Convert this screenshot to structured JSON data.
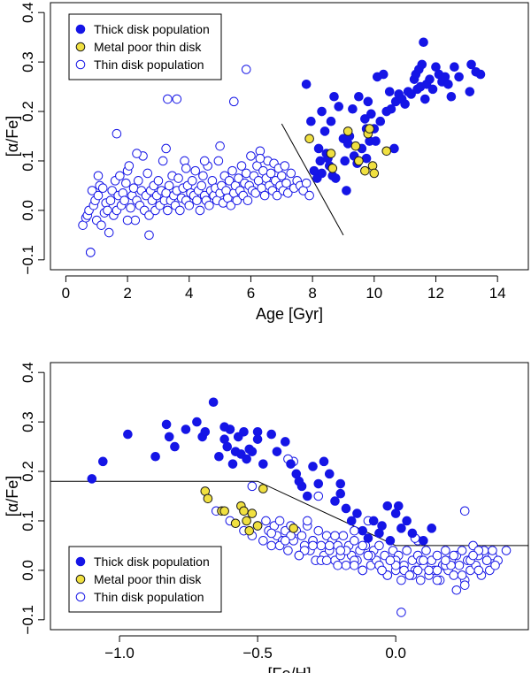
{
  "chart_data": [
    {
      "type": "scatter",
      "xlabel": "Age [Gyr]",
      "ylabel": "[α/Fe]",
      "xlim": [
        -0.5,
        15.0
      ],
      "ylim": [
        -0.12,
        0.42
      ],
      "xticks": [
        0,
        2,
        4,
        6,
        8,
        10,
        12,
        14
      ],
      "xtick_labels": [
        "0",
        "2",
        "4",
        "6",
        "8",
        "10",
        "12",
        "14"
      ],
      "yticks": [
        -0.1,
        0.0,
        0.1,
        0.2,
        0.3,
        0.4
      ],
      "ytick_labels": [
        "−0.1",
        "0.0",
        "0.1",
        "0.2",
        "0.3",
        "0.4"
      ],
      "legend": {
        "position": "top-left",
        "entries": [
          "Thick disk population",
          "Metal poor thin disk",
          "Thin disk population"
        ]
      },
      "dividing_line": {
        "x": [
          7.0,
          9.0
        ],
        "y": [
          0.175,
          -0.05
        ]
      },
      "series": [
        {
          "name": "Thick disk population",
          "marker": "filled",
          "color": "#1515e6",
          "x": [
            7.8,
            7.95,
            8.05,
            8.15,
            8.2,
            8.25,
            8.3,
            8.3,
            8.4,
            8.45,
            8.5,
            8.55,
            8.6,
            8.65,
            8.7,
            8.75,
            8.85,
            9.0,
            9.05,
            9.1,
            9.15,
            9.2,
            9.3,
            9.35,
            9.45,
            9.5,
            9.6,
            9.7,
            9.75,
            9.75,
            9.8,
            9.85,
            9.9,
            10.0,
            10.05,
            10.1,
            10.2,
            10.3,
            10.4,
            10.5,
            10.55,
            10.65,
            10.7,
            10.8,
            10.9,
            11.0,
            11.1,
            11.2,
            11.3,
            11.35,
            11.4,
            11.45,
            11.5,
            11.55,
            11.6,
            11.65,
            11.7,
            11.8,
            11.9,
            12.0,
            12.1,
            12.2,
            12.3,
            12.4,
            12.5,
            12.6,
            12.75,
            13.1,
            13.15,
            13.3,
            13.45
          ],
          "y": [
            0.255,
            0.18,
            0.08,
            0.065,
            0.125,
            0.1,
            0.075,
            0.2,
            0.16,
            0.115,
            0.105,
            0.09,
            0.18,
            0.07,
            0.23,
            0.065,
            0.21,
            0.145,
            0.1,
            0.04,
            0.135,
            0.15,
            0.205,
            0.11,
            0.095,
            0.23,
            0.125,
            0.185,
            0.165,
            0.105,
            0.22,
            0.14,
            0.195,
            0.165,
            0.14,
            0.27,
            0.18,
            0.275,
            0.2,
            0.24,
            0.205,
            0.125,
            0.22,
            0.235,
            0.225,
            0.215,
            0.24,
            0.235,
            0.265,
            0.275,
            0.245,
            0.285,
            0.25,
            0.295,
            0.34,
            0.225,
            0.255,
            0.265,
            0.245,
            0.29,
            0.275,
            0.26,
            0.27,
            0.255,
            0.23,
            0.29,
            0.27,
            0.24,
            0.295,
            0.28,
            0.275
          ]
        },
        {
          "name": "Metal poor thin disk",
          "marker": "filled",
          "color": "#f0e040",
          "x": [
            7.9,
            8.6,
            8.65,
            9.15,
            9.4,
            9.5,
            9.7,
            9.8,
            9.85,
            9.95,
            10.0,
            10.4
          ],
          "y": [
            0.145,
            0.115,
            0.085,
            0.16,
            0.13,
            0.1,
            0.08,
            0.155,
            0.165,
            0.09,
            0.075,
            0.12
          ]
        },
        {
          "name": "Thin disk population",
          "marker": "open",
          "color": "#1515e6",
          "x": [
            0.55,
            0.65,
            0.7,
            0.75,
            0.8,
            0.85,
            0.9,
            0.95,
            1.0,
            1.05,
            1.1,
            1.15,
            1.2,
            1.25,
            1.3,
            1.35,
            1.4,
            1.45,
            1.5,
            1.55,
            1.6,
            1.65,
            1.7,
            1.75,
            1.8,
            1.85,
            1.9,
            1.95,
            2.0,
            2.05,
            2.1,
            2.15,
            2.2,
            2.25,
            2.3,
            2.35,
            2.4,
            2.45,
            2.5,
            2.55,
            2.6,
            2.65,
            2.7,
            2.75,
            2.8,
            2.85,
            2.9,
            2.95,
            3.0,
            3.05,
            3.1,
            3.15,
            3.2,
            3.25,
            3.3,
            3.35,
            3.4,
            3.45,
            3.5,
            3.55,
            3.6,
            3.65,
            3.7,
            3.75,
            3.8,
            3.85,
            3.9,
            3.95,
            4.0,
            4.05,
            4.1,
            4.15,
            4.2,
            4.25,
            4.3,
            4.35,
            4.4,
            4.45,
            4.5,
            4.55,
            4.6,
            4.65,
            4.7,
            4.75,
            4.8,
            4.85,
            4.9,
            4.95,
            5.0,
            5.05,
            5.1,
            5.15,
            5.2,
            5.25,
            5.3,
            5.35,
            5.4,
            5.45,
            5.5,
            5.55,
            5.6,
            5.65,
            5.7,
            5.75,
            5.8,
            5.85,
            5.9,
            5.95,
            6.0,
            6.05,
            6.1,
            6.15,
            6.2,
            6.25,
            6.3,
            6.35,
            6.4,
            6.45,
            6.5,
            6.55,
            6.6,
            6.65,
            6.7,
            6.75,
            6.8,
            6.85,
            6.9,
            6.95,
            7.0,
            7.05,
            7.1,
            7.15,
            7.2,
            7.3,
            7.4,
            7.5,
            7.6,
            7.7,
            7.8,
            7.9,
            3.3,
            3.6,
            5.45,
            5.85,
            1.65,
            3.25,
            2.3,
            1.05,
            0.8,
            2.0,
            4.5,
            5.0,
            6.3,
            2.7,
            3.9
          ],
          "y": [
            -0.03,
            -0.015,
            -0.01,
            0.0,
            -0.085,
            0.04,
            0.01,
            0.02,
            -0.02,
            0.03,
            0.05,
            -0.03,
            0.045,
            -0.005,
            0.015,
            0.0,
            -0.045,
            0.02,
            0.04,
            -0.01,
            0.06,
            0.0,
            0.03,
            0.07,
            0.01,
            0.035,
            0.02,
            0.055,
            0.08,
            0.09,
            0.005,
            0.03,
            0.045,
            -0.02,
            0.02,
            0.06,
            0.01,
            0.04,
            0.11,
            0.0,
            0.03,
            0.075,
            -0.01,
            0.04,
            0.02,
            0.05,
            0.0,
            0.03,
            0.06,
            0.01,
            0.04,
            0.1,
            0.02,
            0.035,
            0.0,
            0.05,
            0.02,
            0.07,
            0.03,
            0.01,
            0.04,
            0.065,
            0.0,
            0.025,
            0.045,
            0.1,
            0.02,
            0.05,
            0.01,
            0.035,
            0.06,
            0.03,
            0.08,
            0.02,
            0.04,
            0.0,
            0.05,
            0.07,
            0.03,
            0.02,
            0.09,
            0.01,
            0.04,
            0.06,
            0.03,
            0.045,
            0.02,
            0.1,
            0.035,
            0.05,
            0.015,
            0.07,
            0.04,
            0.025,
            0.06,
            0.01,
            0.08,
            0.035,
            0.05,
            0.02,
            0.065,
            0.04,
            0.09,
            0.03,
            0.055,
            0.075,
            0.02,
            0.05,
            0.11,
            0.04,
            0.07,
            0.035,
            0.09,
            0.06,
            0.12,
            0.045,
            0.08,
            0.03,
            0.065,
            0.1,
            0.05,
            0.075,
            0.04,
            0.095,
            0.06,
            0.03,
            0.085,
            0.05,
            0.07,
            0.04,
            0.09,
            0.055,
            0.035,
            0.075,
            0.045,
            0.06,
            0.05,
            0.04,
            0.055,
            0.03,
            0.225,
            0.225,
            0.22,
            0.285,
            0.155,
            0.125,
            0.115,
            0.07,
            -0.085,
            -0.02,
            0.1,
            0.13,
            0.105,
            -0.05,
            0.085
          ]
        }
      ]
    },
    {
      "type": "scatter",
      "xlabel": "[Fe/H]",
      "ylabel": "[α/Fe]",
      "xlim": [
        -1.25,
        0.48
      ],
      "ylim": [
        -0.12,
        0.42
      ],
      "xticks": [
        -1.0,
        -0.5,
        0.0
      ],
      "xtick_labels": [
        "−1.0",
        "−0.5",
        "0.0"
      ],
      "yticks": [
        -0.1,
        0.0,
        0.1,
        0.2,
        0.3,
        0.4
      ],
      "ytick_labels": [
        "−0.1",
        "0.0",
        "0.1",
        "0.2",
        "0.3",
        "0.4"
      ],
      "legend": {
        "position": "bottom-left",
        "entries": [
          "Thick disk population",
          "Metal poor thin disk",
          "Thin disk population"
        ]
      },
      "dividing_line": {
        "x": [
          -1.25,
          -0.5,
          0.0,
          0.48
        ],
        "y": [
          0.18,
          0.18,
          0.05,
          0.05
        ]
      },
      "series": [
        {
          "name": "Thick disk population",
          "marker": "filled",
          "color": "#1515e6",
          "x": [
            -1.1,
            -1.06,
            -0.97,
            -0.87,
            -0.83,
            -0.82,
            -0.8,
            -0.76,
            -0.72,
            -0.7,
            -0.69,
            -0.66,
            -0.64,
            -0.62,
            -0.61,
            -0.6,
            -0.59,
            -0.58,
            -0.57,
            -0.56,
            -0.55,
            -0.54,
            -0.53,
            -0.52,
            -0.5,
            -0.48,
            -0.45,
            -0.43,
            -0.4,
            -0.38,
            -0.36,
            -0.34,
            -0.32,
            -0.3,
            -0.28,
            -0.26,
            -0.24,
            -0.22,
            -0.2,
            -0.18,
            -0.16,
            -0.14,
            -0.12,
            -0.1,
            -0.08,
            -0.06,
            -0.05,
            -0.03,
            -0.02,
            0.0,
            0.02,
            0.04,
            0.06,
            0.1,
            0.13,
            -0.62,
            -0.5,
            -0.35,
            -0.2,
            0.01
          ],
          "y": [
            0.185,
            0.22,
            0.275,
            0.23,
            0.295,
            0.27,
            0.25,
            0.285,
            0.3,
            0.27,
            0.28,
            0.34,
            0.23,
            0.265,
            0.25,
            0.285,
            0.215,
            0.24,
            0.27,
            0.235,
            0.28,
            0.225,
            0.245,
            0.24,
            0.28,
            0.215,
            0.275,
            0.24,
            0.26,
            0.215,
            0.195,
            0.17,
            0.15,
            0.21,
            0.175,
            0.22,
            0.195,
            0.14,
            0.175,
            0.125,
            0.1,
            0.115,
            0.08,
            0.065,
            0.1,
            0.075,
            0.09,
            0.13,
            0.06,
            0.115,
            0.085,
            0.1,
            0.075,
            0.06,
            0.085,
            0.29,
            0.265,
            0.18,
            0.155,
            0.13
          ]
        },
        {
          "name": "Metal poor thin disk",
          "marker": "filled",
          "color": "#f0e040",
          "x": [
            -0.69,
            -0.68,
            -0.63,
            -0.62,
            -0.58,
            -0.56,
            -0.55,
            -0.54,
            -0.53,
            -0.52,
            -0.5,
            -0.48,
            -0.37
          ],
          "y": [
            0.16,
            0.145,
            0.12,
            0.12,
            0.095,
            0.13,
            0.12,
            0.1,
            0.08,
            0.115,
            0.09,
            0.165,
            0.085
          ]
        },
        {
          "name": "Thin disk population",
          "marker": "open",
          "color": "#1515e6",
          "x": [
            -0.65,
            -0.6,
            -0.55,
            -0.52,
            -0.5,
            -0.48,
            -0.47,
            -0.46,
            -0.45,
            -0.44,
            -0.43,
            -0.42,
            -0.41,
            -0.4,
            -0.39,
            -0.38,
            -0.37,
            -0.36,
            -0.35,
            -0.34,
            -0.33,
            -0.32,
            -0.31,
            -0.3,
            -0.29,
            -0.28,
            -0.27,
            -0.26,
            -0.25,
            -0.24,
            -0.23,
            -0.22,
            -0.21,
            -0.2,
            -0.19,
            -0.18,
            -0.17,
            -0.16,
            -0.15,
            -0.14,
            -0.13,
            -0.12,
            -0.11,
            -0.1,
            -0.09,
            -0.08,
            -0.07,
            -0.06,
            -0.05,
            -0.04,
            -0.03,
            -0.02,
            -0.01,
            0.0,
            0.01,
            0.02,
            0.03,
            0.04,
            0.05,
            0.06,
            0.07,
            0.08,
            0.09,
            0.1,
            0.11,
            0.12,
            0.13,
            0.14,
            0.15,
            0.16,
            0.17,
            0.18,
            0.19,
            0.2,
            0.21,
            0.22,
            0.23,
            0.24,
            0.25,
            0.26,
            0.27,
            0.28,
            0.29,
            0.3,
            0.31,
            0.32,
            0.33,
            0.34,
            0.35,
            0.37,
            0.4,
            -0.45,
            -0.42,
            -0.38,
            -0.33,
            -0.3,
            -0.27,
            -0.24,
            -0.21,
            -0.18,
            -0.15,
            -0.12,
            -0.09,
            -0.06,
            -0.03,
            0.0,
            0.03,
            0.06,
            0.09,
            0.12,
            0.15,
            0.18,
            0.21,
            0.24,
            0.27,
            0.3,
            0.33,
            0.36,
            -0.4,
            -0.35,
            -0.3,
            -0.25,
            -0.2,
            -0.15,
            -0.1,
            -0.05,
            0.0,
            0.05,
            0.1,
            0.15,
            0.2,
            0.25,
            0.3,
            -0.32,
            -0.22,
            -0.12,
            -0.02,
            0.08,
            0.18,
            0.28,
            -0.37,
            -0.1,
            0.08,
            0.02,
            0.25,
            -0.28,
            -0.15,
            0.07,
            -0.6,
            -0.52,
            -0.39,
            0.22,
            0.35
          ],
          "y": [
            0.12,
            0.1,
            0.08,
            0.07,
            0.09,
            0.06,
            0.1,
            0.08,
            0.05,
            0.09,
            0.07,
            0.1,
            0.06,
            0.08,
            0.04,
            0.09,
            0.06,
            0.08,
            0.03,
            0.07,
            0.05,
            0.09,
            0.04,
            0.06,
            0.02,
            0.08,
            0.05,
            0.03,
            0.07,
            0.04,
            0.06,
            0.02,
            0.05,
            0.03,
            0.07,
            0.01,
            0.05,
            0.03,
            0.06,
            0.02,
            0.04,
            0.0,
            0.05,
            0.03,
            0.01,
            0.04,
            0.02,
            0.05,
            0.0,
            0.03,
            -0.01,
            0.02,
            0.04,
            0.0,
            0.03,
            -0.02,
            0.01,
            0.04,
            -0.01,
            0.02,
            0.0,
            0.03,
            -0.02,
            0.01,
            0.04,
            -0.01,
            0.02,
            0.0,
            0.03,
            -0.02,
            0.01,
            0.04,
            0.0,
            0.02,
            -0.01,
            0.03,
            0.01,
            0.04,
            -0.02,
            0.02,
            0.0,
            0.05,
            0.01,
            0.03,
            -0.01,
            0.04,
            0.02,
            0.0,
            0.03,
            0.02,
            0.04,
            0.075,
            0.05,
            0.07,
            0.04,
            0.06,
            0.02,
            0.05,
            0.01,
            0.04,
            0.02,
            0.0,
            0.03,
            0.01,
            -0.01,
            0.02,
            0.0,
            -0.01,
            0.02,
            0.0,
            -0.02,
            0.01,
            0.03,
            -0.01,
            0.02,
            0.0,
            0.02,
            0.01,
            0.06,
            0.03,
            0.05,
            0.02,
            0.04,
            0.01,
            0.03,
            0.0,
            0.01,
            -0.01,
            0.02,
            0.0,
            0.01,
            -0.03,
            0.04,
            0.1,
            0.07,
            0.05,
            0.02,
            0.0,
            0.02,
            0.03,
            0.22,
            0.1,
            0.06,
            -0.085,
            0.12,
            0.15,
            0.08,
            0.065,
            0.285,
            0.17,
            0.225,
            -0.04,
            0.04
          ]
        }
      ]
    }
  ]
}
